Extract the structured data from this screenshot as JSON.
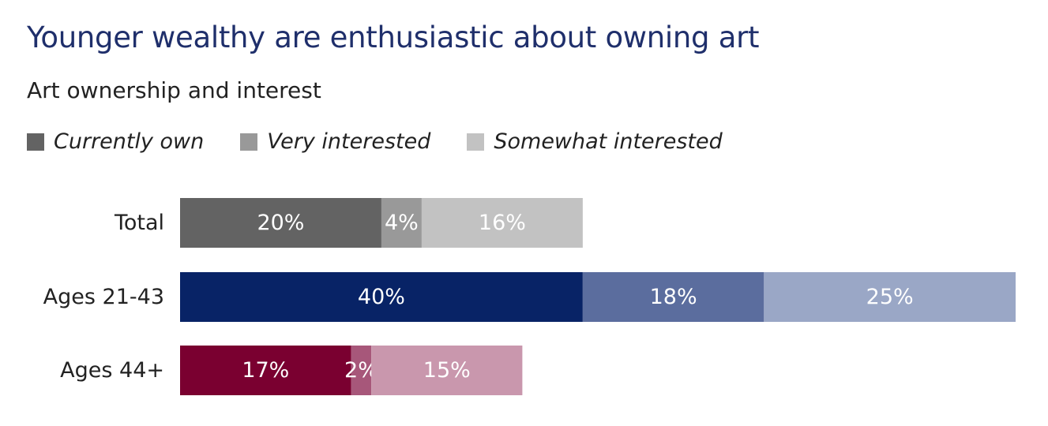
{
  "chart_data": {
    "type": "bar",
    "orientation": "horizontal",
    "stacked": true,
    "title": "Younger wealthy are enthusiastic about owning art",
    "subtitle": "Art ownership and interest",
    "legend_placement": "top-left",
    "grid": false,
    "xlim": [
      0,
      83
    ],
    "categories": [
      "Total",
      "Ages 21-43",
      "Ages 44+"
    ],
    "series": [
      {
        "name": "Currently own",
        "values": [
          20,
          40,
          17
        ],
        "labels": [
          "20%",
          "40%",
          "17%"
        ]
      },
      {
        "name": "Very interested",
        "values": [
          4,
          18,
          2
        ],
        "labels": [
          "4%",
          "18%",
          "2%"
        ]
      },
      {
        "name": "Somewhat interested",
        "values": [
          16,
          25,
          15
        ],
        "labels": [
          "16%",
          "25%",
          "15%"
        ]
      }
    ],
    "legend_colors": [
      "#636363",
      "#999999",
      "#c2c2c2"
    ],
    "row_colors": [
      [
        "#636363",
        "#999999",
        "#c2c2c2"
      ],
      [
        "#082366",
        "#5b6d9e",
        "#9aa7c6"
      ],
      [
        "#7a0030",
        "#a7577a",
        "#c997ad"
      ]
    ]
  }
}
